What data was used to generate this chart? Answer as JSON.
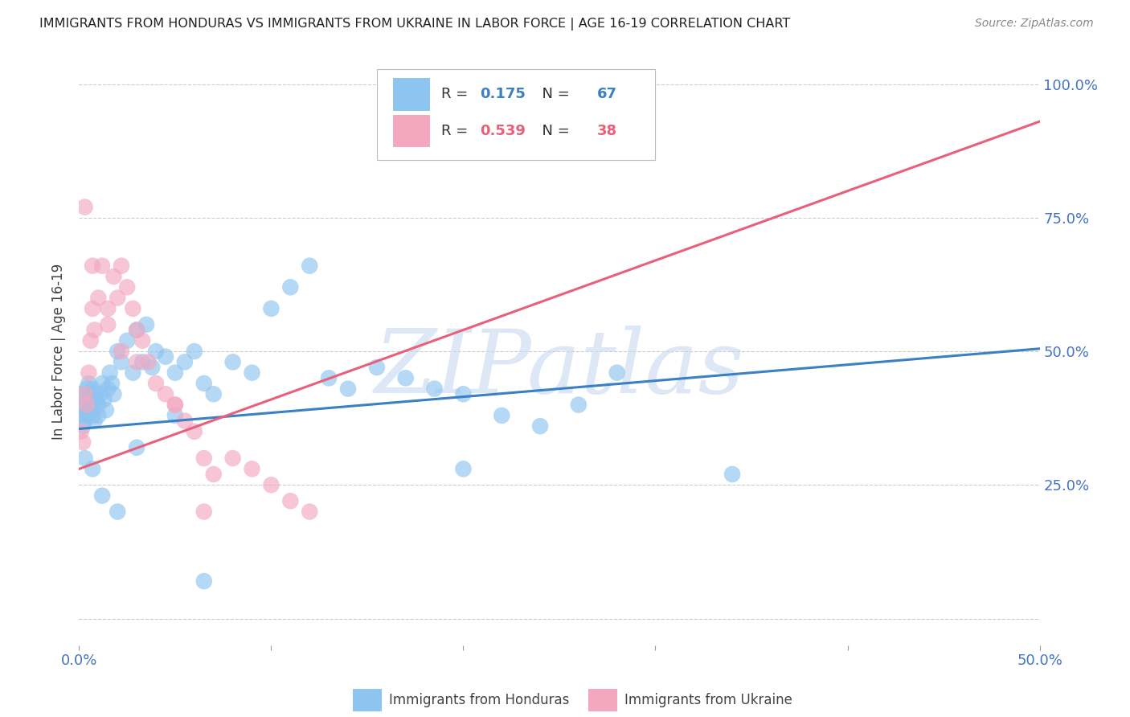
{
  "title": "IMMIGRANTS FROM HONDURAS VS IMMIGRANTS FROM UKRAINE IN LABOR FORCE | AGE 16-19 CORRELATION CHART",
  "source": "Source: ZipAtlas.com",
  "ylabel": "In Labor Force | Age 16-19",
  "xlim": [
    0.0,
    0.5
  ],
  "ylim": [
    -0.05,
    1.05
  ],
  "ytick_positions": [
    0.0,
    0.25,
    0.5,
    0.75,
    1.0
  ],
  "ytick_labels": [
    "",
    "25.0%",
    "50.0%",
    "75.0%",
    "100.0%"
  ],
  "xtick_positions": [
    0.0,
    0.1,
    0.2,
    0.3,
    0.4,
    0.5
  ],
  "xtick_labels": [
    "0.0%",
    "",
    "",
    "",
    "",
    "50.0%"
  ],
  "blue_color": "#8EC4F0",
  "pink_color": "#F4A8C0",
  "blue_line_color": "#3B7FC4",
  "pink_line_color": "#E8607A",
  "tick_color": "#4472C4",
  "background_color": "#FFFFFF",
  "grid_color": "#CCCCCC",
  "watermark": "ZIPatlas",
  "watermark_color": "#C8D8F0",
  "legend_val1": "0.175",
  "legend_count1": "67",
  "legend_val2": "0.539",
  "legend_count2": "38",
  "blue_intercept": 0.355,
  "blue_slope": 0.3,
  "pink_intercept": 0.28,
  "pink_slope": 1.3,
  "honduras_x": [
    0.001,
    0.001,
    0.002,
    0.002,
    0.003,
    0.003,
    0.003,
    0.004,
    0.004,
    0.005,
    0.005,
    0.006,
    0.006,
    0.007,
    0.007,
    0.008,
    0.008,
    0.009,
    0.01,
    0.01,
    0.011,
    0.012,
    0.013,
    0.014,
    0.015,
    0.016,
    0.017,
    0.018,
    0.02,
    0.022,
    0.025,
    0.028,
    0.03,
    0.033,
    0.035,
    0.038,
    0.04,
    0.045,
    0.05,
    0.055,
    0.06,
    0.065,
    0.07,
    0.08,
    0.09,
    0.1,
    0.11,
    0.12,
    0.13,
    0.14,
    0.155,
    0.17,
    0.185,
    0.2,
    0.22,
    0.24,
    0.26,
    0.28,
    0.003,
    0.007,
    0.012,
    0.02,
    0.03,
    0.05,
    0.065,
    0.2,
    0.34
  ],
  "honduras_y": [
    0.38,
    0.42,
    0.4,
    0.36,
    0.41,
    0.39,
    0.37,
    0.43,
    0.38,
    0.44,
    0.4,
    0.41,
    0.39,
    0.43,
    0.38,
    0.42,
    0.37,
    0.41,
    0.4,
    0.38,
    0.42,
    0.44,
    0.41,
    0.39,
    0.43,
    0.46,
    0.44,
    0.42,
    0.5,
    0.48,
    0.52,
    0.46,
    0.54,
    0.48,
    0.55,
    0.47,
    0.5,
    0.49,
    0.46,
    0.48,
    0.5,
    0.44,
    0.42,
    0.48,
    0.46,
    0.58,
    0.62,
    0.66,
    0.45,
    0.43,
    0.47,
    0.45,
    0.43,
    0.42,
    0.38,
    0.36,
    0.4,
    0.46,
    0.3,
    0.28,
    0.23,
    0.2,
    0.32,
    0.38,
    0.07,
    0.28,
    0.27
  ],
  "ukraine_x": [
    0.001,
    0.002,
    0.003,
    0.004,
    0.005,
    0.006,
    0.007,
    0.008,
    0.01,
    0.012,
    0.015,
    0.018,
    0.02,
    0.022,
    0.025,
    0.028,
    0.03,
    0.033,
    0.036,
    0.04,
    0.045,
    0.05,
    0.055,
    0.06,
    0.065,
    0.07,
    0.08,
    0.09,
    0.1,
    0.11,
    0.003,
    0.007,
    0.015,
    0.022,
    0.03,
    0.05,
    0.065,
    0.12
  ],
  "ukraine_y": [
    0.35,
    0.33,
    0.42,
    0.4,
    0.46,
    0.52,
    0.58,
    0.54,
    0.6,
    0.66,
    0.58,
    0.64,
    0.6,
    0.66,
    0.62,
    0.58,
    0.54,
    0.52,
    0.48,
    0.44,
    0.42,
    0.4,
    0.37,
    0.35,
    0.3,
    0.27,
    0.3,
    0.28,
    0.25,
    0.22,
    0.77,
    0.66,
    0.55,
    0.5,
    0.48,
    0.4,
    0.2,
    0.2
  ]
}
